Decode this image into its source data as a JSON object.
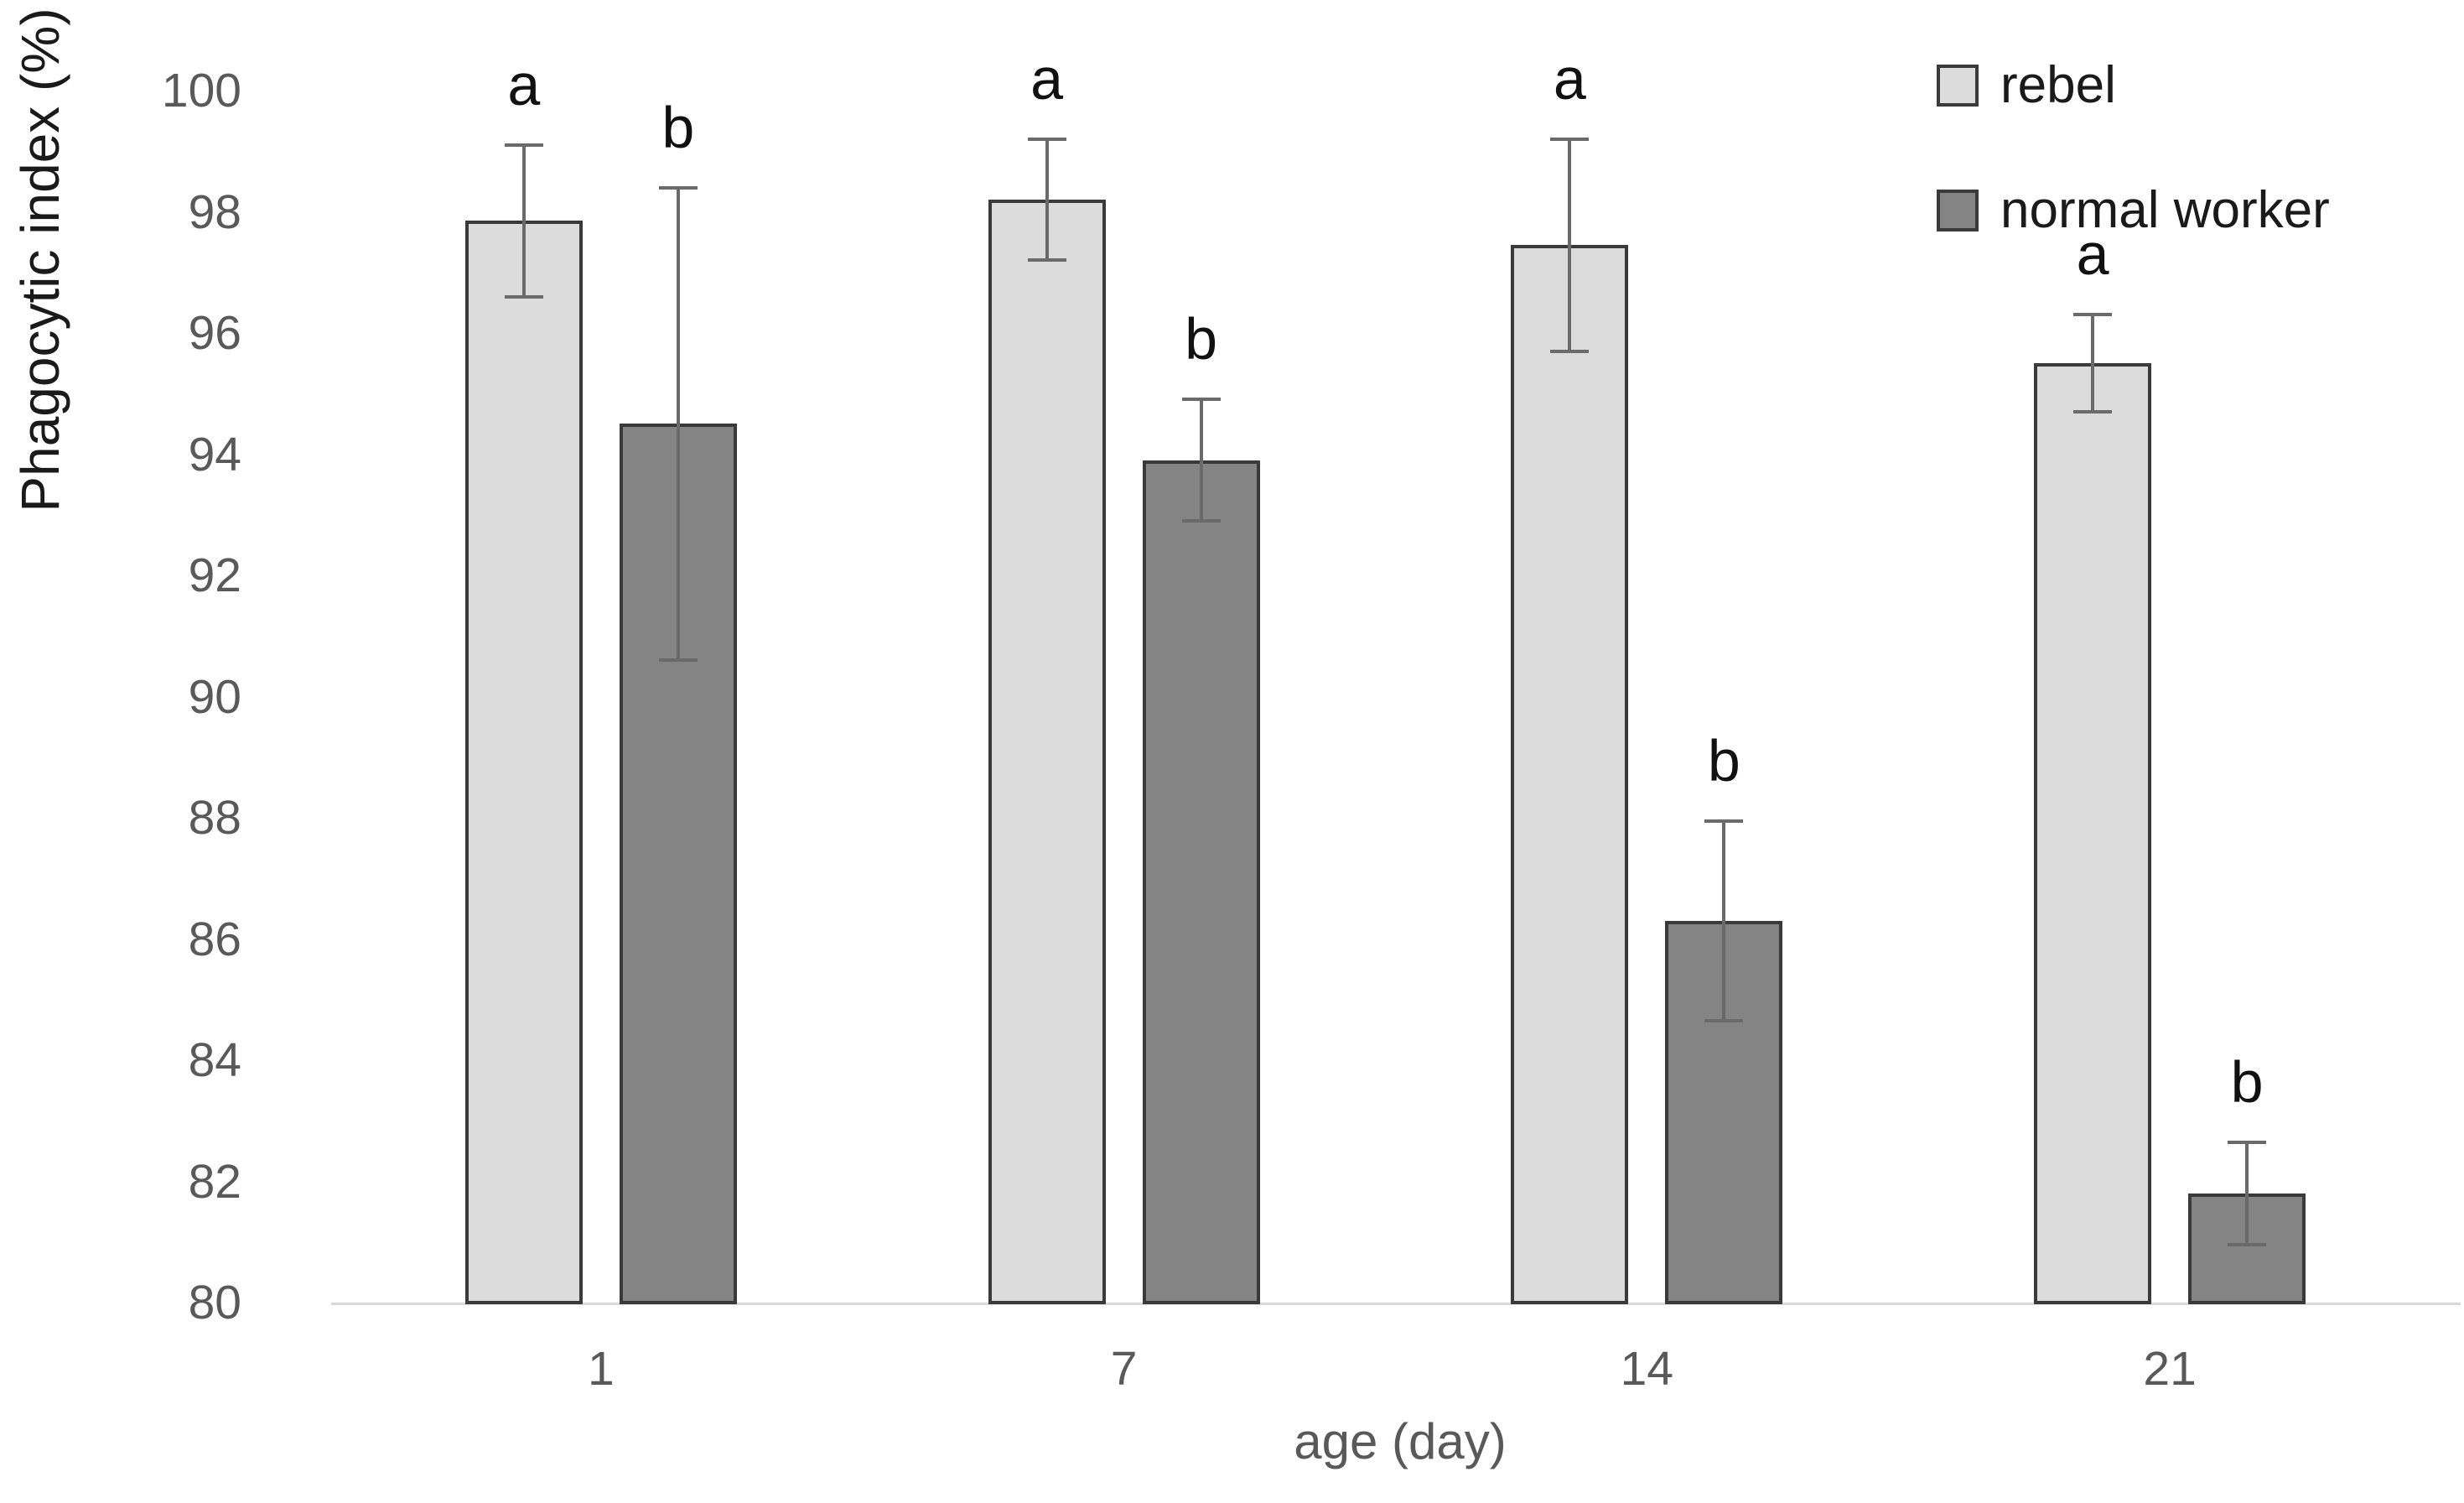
{
  "chart_data": {
    "type": "bar",
    "title": "",
    "xlabel": "age (day)",
    "ylabel": "Phagocytic index (%)",
    "categories": [
      "1",
      "7",
      "14",
      "21"
    ],
    "series": [
      {
        "name": "rebel",
        "color": "#dcdcdc",
        "values": [
          97.85,
          98.2,
          97.45,
          95.5
        ],
        "errors": [
          1.25,
          1.0,
          1.75,
          0.8
        ],
        "sig_letters": [
          "a",
          "a",
          "a",
          "a"
        ]
      },
      {
        "name": "normal worker",
        "color": "#848484",
        "values": [
          94.5,
          93.9,
          86.3,
          81.8
        ],
        "errors": [
          3.9,
          1.0,
          1.65,
          0.85
        ],
        "sig_letters": [
          "b",
          "b",
          "b",
          "b"
        ]
      }
    ],
    "ylim": [
      80,
      100
    ],
    "ytick_step": 2,
    "grid": false,
    "legend_position": "top-right",
    "bar_border_color": "#3a3a3a",
    "error_bar_color": "#6a6a6a",
    "axis_line_color": "#d9d9d9",
    "tick_label_color": "#595959"
  }
}
